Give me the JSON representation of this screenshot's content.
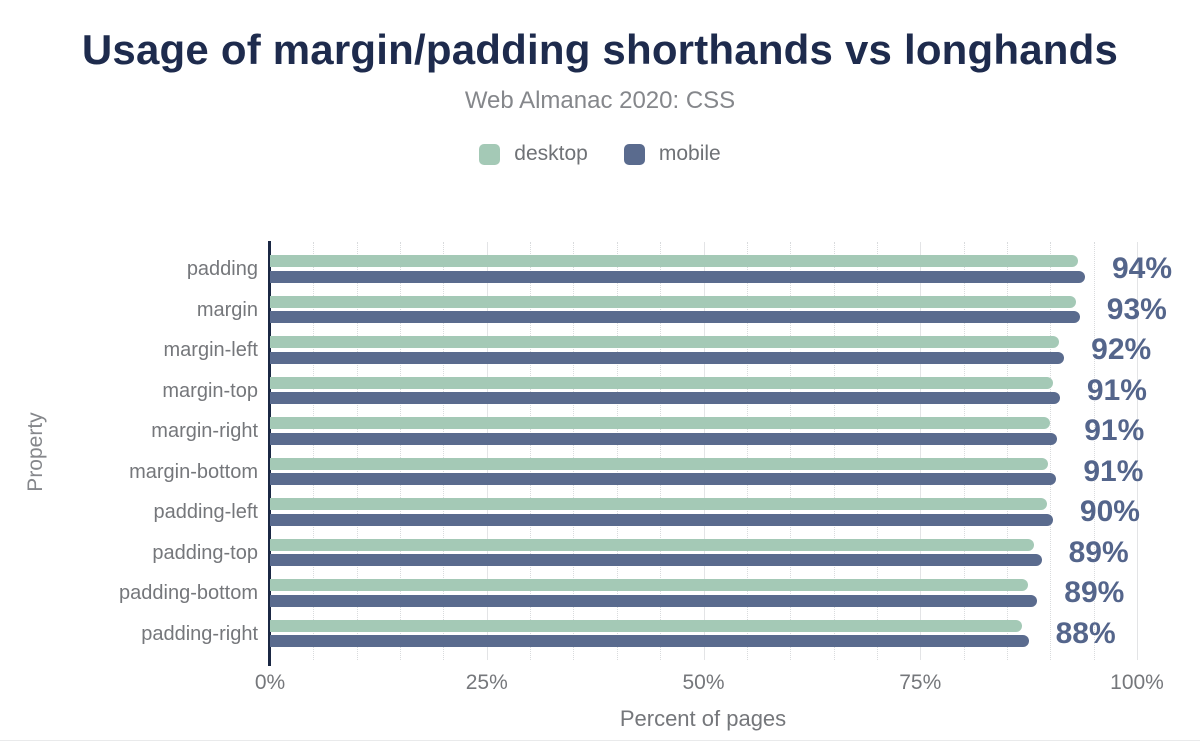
{
  "title": "Usage of margin/padding shorthands vs longhands",
  "subtitle": "Web Almanac 2020: CSS",
  "legend": {
    "items": [
      {
        "label": "desktop",
        "color": "#a4c9b6"
      },
      {
        "label": "mobile",
        "color": "#5a6b8e"
      }
    ]
  },
  "colors": {
    "title": "#1e2b4d",
    "desktop_bar": "#a4c9b6",
    "mobile_bar": "#5a6b8e",
    "value_label": "#54658b",
    "axis_line": "#1b2844",
    "muted_text": "#75777b",
    "grid_minor": "#d9dbdd",
    "grid_major": "#e3e4e6"
  },
  "chart_data": {
    "type": "bar",
    "orientation": "horizontal",
    "title": "Usage of margin/padding shorthands vs longhands",
    "subtitle": "Web Almanac 2020: CSS",
    "xlabel": "Percent of pages",
    "ylabel": "Property",
    "xlim": [
      0,
      100
    ],
    "x_ticks": [
      {
        "value": 0,
        "label": "0%"
      },
      {
        "value": 25,
        "label": "25%"
      },
      {
        "value": 50,
        "label": "50%"
      },
      {
        "value": 75,
        "label": "75%"
      },
      {
        "value": 100,
        "label": "100%"
      }
    ],
    "grid": {
      "minor_step": 5,
      "major_step": 25,
      "shown": true
    },
    "legend_position": "top",
    "categories": [
      "padding",
      "margin",
      "margin-left",
      "margin-top",
      "margin-right",
      "margin-bottom",
      "padding-left",
      "padding-top",
      "padding-bottom",
      "padding-right"
    ],
    "series": [
      {
        "name": "desktop",
        "color": "#a4c9b6",
        "values": [
          93.2,
          93.0,
          91.0,
          90.3,
          90.0,
          89.7,
          89.6,
          88.1,
          87.4,
          86.7
        ]
      },
      {
        "name": "mobile",
        "color": "#5a6b8e",
        "values": [
          94.0,
          93.4,
          91.6,
          91.1,
          90.8,
          90.7,
          90.3,
          89.0,
          88.5,
          87.5
        ]
      }
    ],
    "value_labels": [
      "94%",
      "93%",
      "92%",
      "91%",
      "91%",
      "91%",
      "90%",
      "89%",
      "89%",
      "88%"
    ]
  }
}
